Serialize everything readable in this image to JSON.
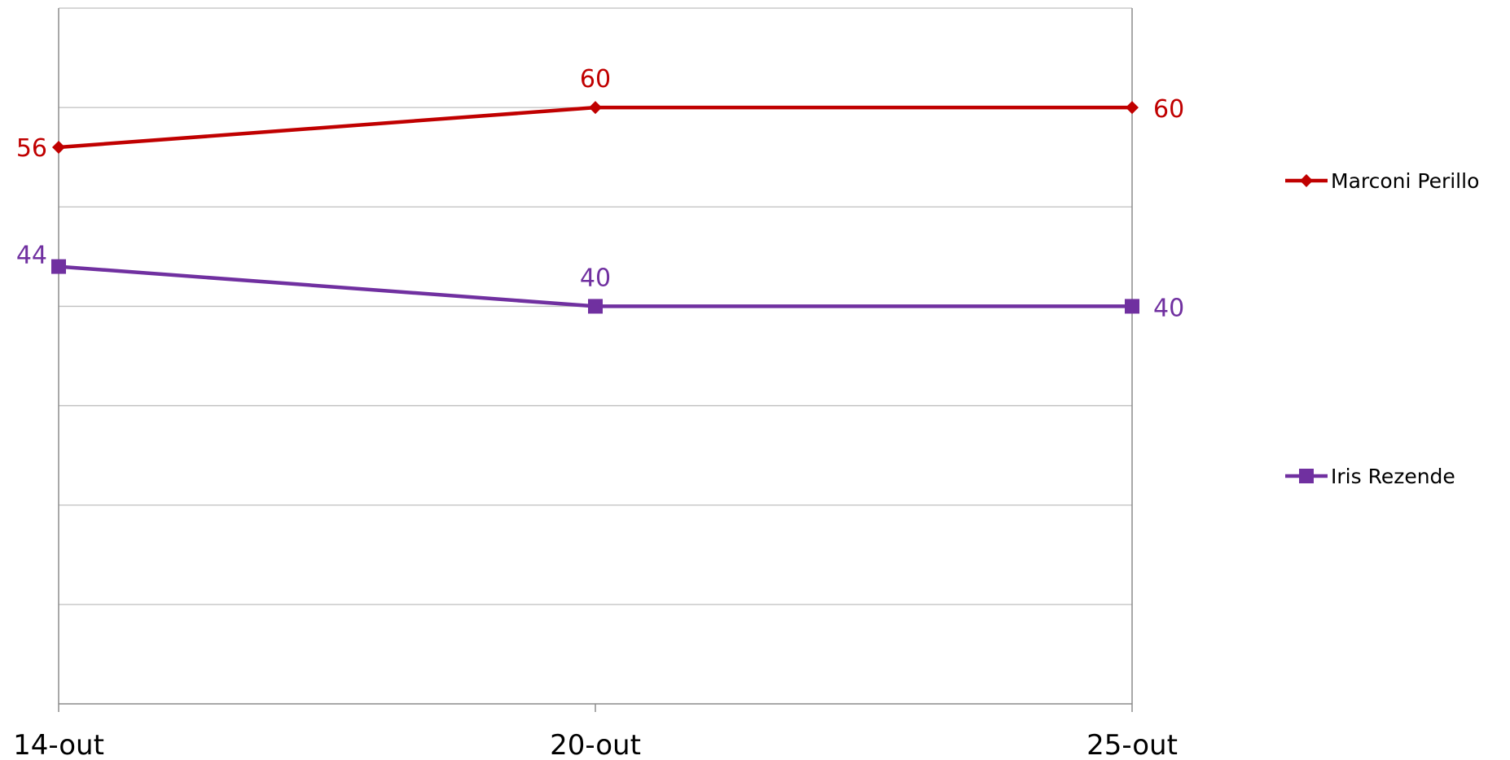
{
  "chart_data": {
    "type": "line",
    "title": "",
    "xlabel": "",
    "ylabel": "",
    "categories": [
      "14-out",
      "20-out",
      "25-out"
    ],
    "ylim": [
      0,
      70
    ],
    "grid": true,
    "gridline_step": 10,
    "y_tick_labels_shown": false,
    "legend_position": "right",
    "series": [
      {
        "name": "Marconi Perillo",
        "values": [
          56,
          60,
          60
        ],
        "color": "#C00000",
        "marker": "diamond"
      },
      {
        "name": "Iris Rezende",
        "values": [
          44,
          40,
          40
        ],
        "color": "#7030A0",
        "marker": "square"
      }
    ]
  }
}
